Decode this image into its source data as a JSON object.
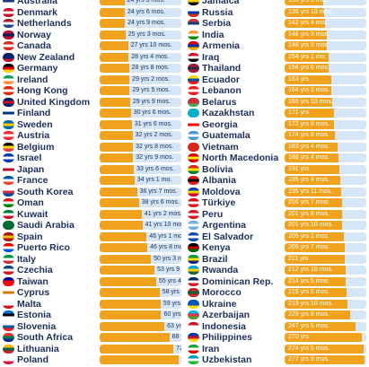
{
  "chart_data": {
    "type": "bar",
    "orientation": "horizontal",
    "value_unit": "years",
    "colors": {
      "bar": "#f0a21c",
      "track": "#d5e6f6",
      "text": "#1c2f5c"
    },
    "columns": [
      {
        "rows": [
          {
            "country": "Australia",
            "label": "24 yrs 3 mos.",
            "value": 24.25,
            "flag": [
              "#1f3a7a",
              "#1f3a7a",
              "#ffffff"
            ]
          },
          {
            "country": "Denmark",
            "label": "24 yrs 6 mos.",
            "value": 24.5,
            "flag": [
              "#c8102e",
              "#ffffff",
              "#c8102e"
            ]
          },
          {
            "country": "Netherlands",
            "label": "24 yrs 9 mos.",
            "value": 24.75,
            "flag": [
              "#ae1c28",
              "#ffffff",
              "#21468b"
            ]
          },
          {
            "country": "Norway",
            "label": "25 yrs 3 mos.",
            "value": 25.25,
            "flag": [
              "#ba0c2f",
              "#00205b",
              "#ba0c2f"
            ]
          },
          {
            "country": "Canada",
            "label": "27 yrs 10 mos.",
            "value": 27.83,
            "flag": [
              "#d52b1e",
              "#ffffff",
              "#d52b1e"
            ]
          },
          {
            "country": "New Zealand",
            "label": "28 yrs 4 mos.",
            "value": 28.33,
            "flag": [
              "#012169",
              "#012169",
              "#c8102e"
            ]
          },
          {
            "country": "Germany",
            "label": "28 yrs 8 mos.",
            "value": 28.67,
            "flag": [
              "#000000",
              "#dd0000",
              "#ffce00"
            ]
          },
          {
            "country": "Ireland",
            "label": "29 yrs 2 mos.",
            "value": 29.17,
            "flag": [
              "#169b62",
              "#ffffff",
              "#ff883e"
            ]
          },
          {
            "country": "Hong Kong",
            "label": "29 yrs 5 mos.",
            "value": 29.42,
            "flag": [
              "#de2910",
              "#ffffff",
              "#de2910"
            ]
          },
          {
            "country": "United Kingdom",
            "label": "29 yrs 9 mos.",
            "value": 29.75,
            "flag": [
              "#012169",
              "#c8102e",
              "#012169"
            ]
          },
          {
            "country": "Finland",
            "label": "30 yrs 6 mos.",
            "value": 30.5,
            "flag": [
              "#ffffff",
              "#003580",
              "#ffffff"
            ]
          },
          {
            "country": "Sweden",
            "label": "31 yrs 6 mos.",
            "value": 31.5,
            "flag": [
              "#006aa7",
              "#fecc00",
              "#006aa7"
            ]
          },
          {
            "country": "Austria",
            "label": "32 yrs 2 mos.",
            "value": 32.17,
            "flag": [
              "#ed2939",
              "#ffffff",
              "#ed2939"
            ]
          },
          {
            "country": "Belgium",
            "label": "32 yrs 8 mos.",
            "value": 32.67,
            "flag": [
              "#000000",
              "#fdda24",
              "#ef3340"
            ]
          },
          {
            "country": "Israel",
            "label": "32 yrs 9 mos.",
            "value": 32.75,
            "flag": [
              "#0038b8",
              "#ffffff",
              "#0038b8"
            ]
          },
          {
            "country": "Japan",
            "label": "33 yrs 6 mos.",
            "value": 33.5,
            "flag": [
              "#ffffff",
              "#bc002d",
              "#ffffff"
            ]
          },
          {
            "country": "France",
            "label": "34 yrs 1 mo.",
            "value": 34.08,
            "flag": [
              "#0055a4",
              "#ffffff",
              "#ef4135"
            ]
          },
          {
            "country": "South Korea",
            "label": "36 yrs 7 mos.",
            "value": 36.58,
            "flag": [
              "#ffffff",
              "#cd2e3a",
              "#0047a0"
            ]
          },
          {
            "country": "Oman",
            "label": "38 yrs 6 mos.",
            "value": 38.5,
            "flag": [
              "#db161b",
              "#ffffff",
              "#008000"
            ]
          },
          {
            "country": "Kuwait",
            "label": "41 yrs 2 mos.",
            "value": 41.17,
            "flag": [
              "#007a3d",
              "#ffffff",
              "#ce1126"
            ]
          },
          {
            "country": "Saudi Arabia",
            "label": "41 yrs 10 mos.",
            "value": 41.83,
            "flag": [
              "#006c35",
              "#006c35",
              "#006c35"
            ]
          },
          {
            "country": "Spain",
            "label": "46 yrs 1 mo.",
            "value": 46.08,
            "flag": [
              "#aa151b",
              "#f1bf00",
              "#aa151b"
            ]
          },
          {
            "country": "Puerto Rico",
            "label": "46 yrs 8 mos.",
            "value": 46.67,
            "flag": [
              "#ed0000",
              "#ffffff",
              "#0050f0"
            ]
          },
          {
            "country": "Italy",
            "label": "50 yrs 3 mos.",
            "value": 50.25,
            "flag": [
              "#009246",
              "#ffffff",
              "#ce2b37"
            ]
          },
          {
            "country": "Czechia",
            "label": "53 yrs 9 mos.",
            "value": 53.75,
            "flag": [
              "#11457e",
              "#ffffff",
              "#d7141a"
            ]
          },
          {
            "country": "Taiwan",
            "label": "55 yrs 4 mos.",
            "value": 55.33,
            "flag": [
              "#000095",
              "#fe0000",
              "#fe0000"
            ]
          },
          {
            "country": "Cyprus",
            "label": "58 yrs 8 mos.",
            "value": 58.67,
            "flag": [
              "#ffffff",
              "#d57800",
              "#ffffff"
            ]
          },
          {
            "country": "Malta",
            "label": "59 yrs 8 mos.",
            "value": 59.67,
            "flag": [
              "#ffffff",
              "#ffffff",
              "#cf142b"
            ]
          },
          {
            "country": "Estonia",
            "label": "60 yrs 2 mos.",
            "value": 60.17,
            "flag": [
              "#0072ce",
              "#000000",
              "#ffffff"
            ]
          },
          {
            "country": "Slovenia",
            "label": "63 yrs 5 mos.",
            "value": 63.42,
            "flag": [
              "#ffffff",
              "#005da4",
              "#ed1c24"
            ]
          },
          {
            "country": "South Africa",
            "label": "68 yrs 3 mos.",
            "value": 68.25,
            "flag": [
              "#de3831",
              "#007a4d",
              "#002395"
            ]
          },
          {
            "country": "Lithuania",
            "label": "72 yrs 3 mos.",
            "value": 72.25,
            "flag": [
              "#fdb913",
              "#006a44",
              "#c1272d"
            ]
          },
          {
            "country": "Poland",
            "label": "77 yrs 9 mos.",
            "value": 77.75,
            "flag": [
              "#ffffff",
              "#ffffff",
              "#dc143c"
            ]
          }
        ]
      },
      {
        "rows": [
          {
            "country": "Jamaica",
            "label": "135 yrs 3 mos.",
            "value": 135.25,
            "flag": [
              "#009b3a",
              "#fed100",
              "#000000"
            ]
          },
          {
            "country": "Russia",
            "label": "136 yrs 10 mos.",
            "value": 136.83,
            "flag": [
              "#ffffff",
              "#0039a6",
              "#d52b1e"
            ]
          },
          {
            "country": "Serbia",
            "label": "142 yrs 4 mos.",
            "value": 142.33,
            "flag": [
              "#c6363c",
              "#0c4076",
              "#ffffff"
            ]
          },
          {
            "country": "India",
            "label": "148 yrs 3 mos.",
            "value": 148.25,
            "flag": [
              "#ff9933",
              "#ffffff",
              "#138808"
            ]
          },
          {
            "country": "Armenia",
            "label": "148 yrs 5 mos.",
            "value": 148.42,
            "flag": [
              "#d90012",
              "#0033a0",
              "#f2a800"
            ]
          },
          {
            "country": "Iraq",
            "label": "154 yrs 1 mo.",
            "value": 154.08,
            "flag": [
              "#ce1126",
              "#ffffff",
              "#000000"
            ]
          },
          {
            "country": "Thailand",
            "label": "154 yrs 6 mos.",
            "value": 154.5,
            "flag": [
              "#a51931",
              "#2d2a4a",
              "#a51931"
            ]
          },
          {
            "country": "Ecuador",
            "label": "163 yrs",
            "value": 163.0,
            "flag": [
              "#ffdd00",
              "#034ea2",
              "#ed1c24"
            ]
          },
          {
            "country": "Lebanon",
            "label": "164 yrs 3 mos.",
            "value": 164.25,
            "flag": [
              "#ed1c24",
              "#ffffff",
              "#ed1c24"
            ]
          },
          {
            "country": "Belarus",
            "label": "165 yrs 10 mos.",
            "value": 165.83,
            "flag": [
              "#c8313e",
              "#c8313e",
              "#4aa657"
            ]
          },
          {
            "country": "Kazakhstan",
            "label": "171 yrs",
            "value": 171.0,
            "flag": [
              "#00afca",
              "#00afca",
              "#00afca"
            ]
          },
          {
            "country": "Georgia",
            "label": "172 yrs 8 mos.",
            "value": 172.67,
            "flag": [
              "#ffffff",
              "#ff0000",
              "#ffffff"
            ]
          },
          {
            "country": "Guatemala",
            "label": "174 yrs 8 mos.",
            "value": 174.67,
            "flag": [
              "#4997d0",
              "#ffffff",
              "#4997d0"
            ]
          },
          {
            "country": "Vietnam",
            "label": "183 yrs 4 mos.",
            "value": 183.33,
            "flag": [
              "#da251d",
              "#da251d",
              "#da251d"
            ]
          },
          {
            "country": "North Macedonia",
            "label": "188 yrs 4 mos.",
            "value": 188.33,
            "flag": [
              "#d20000",
              "#ffe600",
              "#d20000"
            ]
          },
          {
            "country": "Bolivia",
            "label": "191 yrs",
            "value": 191.0,
            "flag": [
              "#d52b1e",
              "#f9e300",
              "#007934"
            ]
          },
          {
            "country": "Albania",
            "label": "195 yrs 4 mos.",
            "value": 195.33,
            "flag": [
              "#e41e20",
              "#000000",
              "#e41e20"
            ]
          },
          {
            "country": "Moldova",
            "label": "195 yrs 11 mos.",
            "value": 195.92,
            "flag": [
              "#0046ae",
              "#ffd200",
              "#cc092f"
            ]
          },
          {
            "country": "Türkiye",
            "label": "200 yrs 7 mos.",
            "value": 200.58,
            "flag": [
              "#e30a17",
              "#ffffff",
              "#e30a17"
            ]
          },
          {
            "country": "Peru",
            "label": "201 yrs 8 mos.",
            "value": 201.67,
            "flag": [
              "#d91023",
              "#ffffff",
              "#d91023"
            ]
          },
          {
            "country": "Argentina",
            "label": "201 yrs 10 mos.",
            "value": 201.83,
            "flag": [
              "#74acdf",
              "#ffffff",
              "#74acdf"
            ]
          },
          {
            "country": "El Salvador",
            "label": "205 yrs 2 mos.",
            "value": 205.17,
            "flag": [
              "#0f47af",
              "#ffffff",
              "#0f47af"
            ]
          },
          {
            "country": "Kenya",
            "label": "209 yrs 7 mos.",
            "value": 209.58,
            "flag": [
              "#000000",
              "#bb0000",
              "#006600"
            ]
          },
          {
            "country": "Brazil",
            "label": "211 yrs",
            "value": 211.0,
            "flag": [
              "#009c3b",
              "#ffdf00",
              "#002776"
            ]
          },
          {
            "country": "Rwanda",
            "label": "212 yrs 10 mos.",
            "value": 212.83,
            "flag": [
              "#00a1de",
              "#fad201",
              "#20603d"
            ]
          },
          {
            "country": "Dominican Rep.",
            "label": "214 yrs 5 mos.",
            "value": 214.42,
            "flag": [
              "#002d62",
              "#ffffff",
              "#ce1126"
            ]
          },
          {
            "country": "Morocco",
            "label": "215 yrs 6 mos.",
            "value": 215.5,
            "flag": [
              "#c1272d",
              "#006233",
              "#c1272d"
            ]
          },
          {
            "country": "Ukraine",
            "label": "219 yrs 10 mos.",
            "value": 219.83,
            "flag": [
              "#0057b7",
              "#0057b7",
              "#ffd700"
            ]
          },
          {
            "country": "Azerbaijan",
            "label": "229 yrs 8 mos.",
            "value": 229.67,
            "flag": [
              "#00b5e2",
              "#ef3340",
              "#509e2f"
            ]
          },
          {
            "country": "Indonesia",
            "label": "247 yrs 5 mos.",
            "value": 247.42,
            "flag": [
              "#ce1126",
              "#ffffff",
              "#ffffff"
            ]
          },
          {
            "country": "Philippines",
            "label": "270 yrs",
            "value": 270.0,
            "flag": [
              "#0038a8",
              "#ce1126",
              "#fcd116"
            ]
          },
          {
            "country": "Iran",
            "label": "274 yrs 5 mos.",
            "value": 274.42,
            "flag": [
              "#239f40",
              "#ffffff",
              "#da0000"
            ]
          },
          {
            "country": "Uzbekistan",
            "label": "277 yrs 9 mos.",
            "value": 277.75,
            "flag": [
              "#0099b5",
              "#ffffff",
              "#1eb53a"
            ]
          }
        ]
      }
    ]
  }
}
